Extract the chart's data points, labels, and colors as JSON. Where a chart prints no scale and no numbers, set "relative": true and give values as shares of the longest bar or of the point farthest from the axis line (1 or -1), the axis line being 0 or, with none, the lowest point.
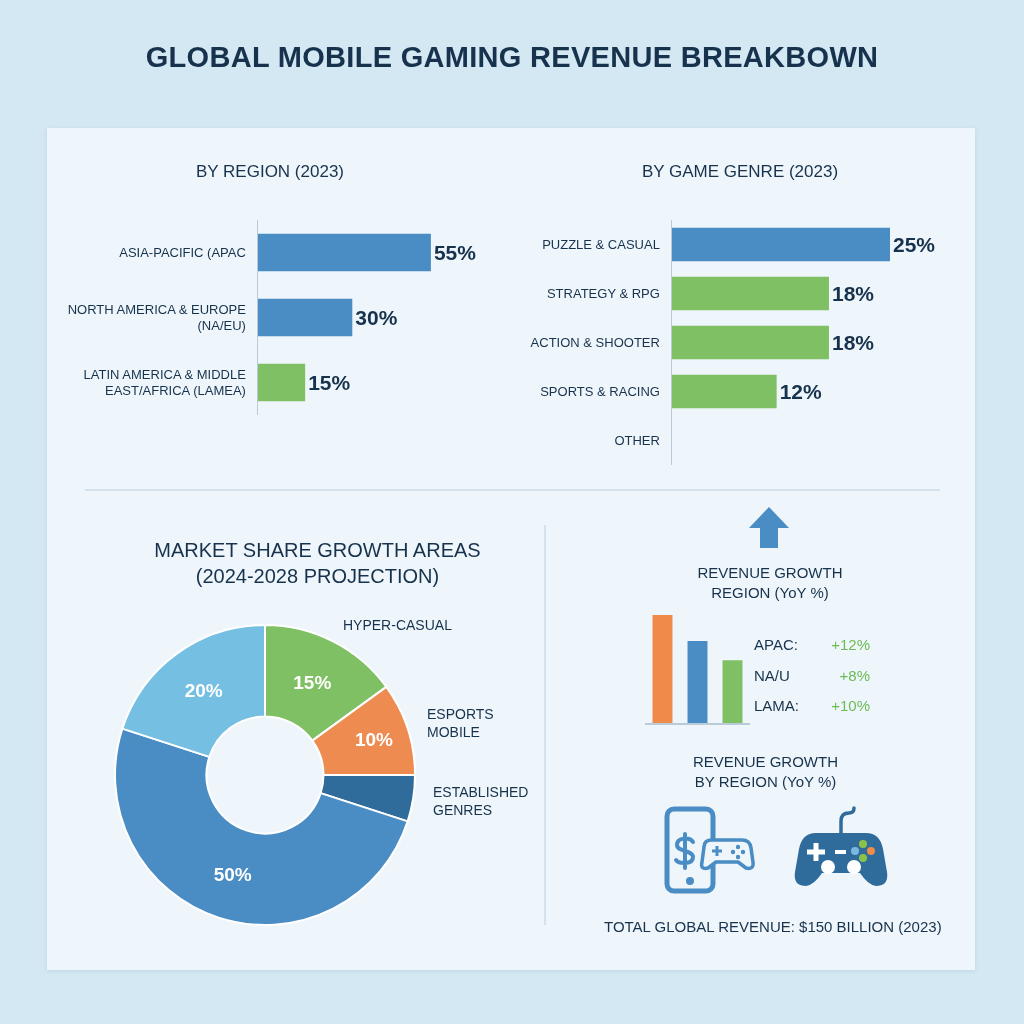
{
  "chart_data": [
    {
      "type": "other",
      "title": "GLOBAL MOBILE GAMING REVENUE BREAKBOWN"
    },
    {
      "type": "bar",
      "title": "BY REGION (2023)",
      "orientation": "horizontal",
      "categories": [
        "ASIA-PACIFIC (APAC",
        "NORTH AMERICA & EUROPE (NA/EU)",
        "LATIN AMERICA & MIDDLE EAST/AFRICA (LAMEA)"
      ],
      "values": [
        55,
        30,
        15
      ],
      "colors": [
        "#4a8cc4",
        "#4a8cc4",
        "#80c064"
      ],
      "value_labels": [
        "55%",
        "30%",
        "15%"
      ],
      "tick_labels": "y"
    },
    {
      "type": "bar",
      "title": "BY GAME GENRE (2023)",
      "orientation": "horizontal",
      "categories": [
        "PUZZLE & CASUAL",
        "STRATEGY & RPG",
        "ACTION & SHOOTER",
        "SPORTS & RACING",
        "OTHER"
      ],
      "values": [
        25,
        18,
        18,
        12,
        null
      ],
      "colors": [
        "#4a8cc4",
        "#80c064",
        "#80c064",
        "#80c064",
        null
      ],
      "value_labels": [
        "25%",
        "18%",
        "18%",
        "12%",
        null
      ],
      "xlim": [
        0,
        25
      ],
      "tick_labels": "y"
    },
    {
      "type": "donut",
      "title": "MARKET SHARE GROWTH AREAS (2024-2028 PROJECTION)",
      "categories": [
        "HYPER-CASUAL",
        "ESPORTS MOBILE",
        "ESTABLISHED GENRES",
        null,
        null
      ],
      "values": [
        15,
        10,
        5,
        50,
        20
      ],
      "colors": [
        "#80c064",
        "#ee8b50",
        "#2f6b9b",
        "#4a8cc4",
        "#74bfe2"
      ],
      "value_labels": [
        "15%",
        "10%",
        null,
        "50%",
        "20%"
      ]
    },
    {
      "type": "bar",
      "title": "REVENUE GROWTH REGION (YoY %)",
      "relative": true,
      "categories": [
        null,
        null,
        null
      ],
      "values": [
        1,
        0.76,
        0.58
      ],
      "colors": [
        "#f08a4b",
        "#4a8cc4",
        "#80c064"
      ],
      "annotations": [
        "REVENUE GROWTH BY REGION (YoY %)",
        "TOTAL GLOBAL REVENUE: $150 BILLION (2023)"
      ]
    },
    {
      "type": "other",
      "annotations": [
        "APAC:",
        "+12%",
        "NA/U",
        "+8%",
        "LAMA:",
        "+10%"
      ]
    }
  ]
}
